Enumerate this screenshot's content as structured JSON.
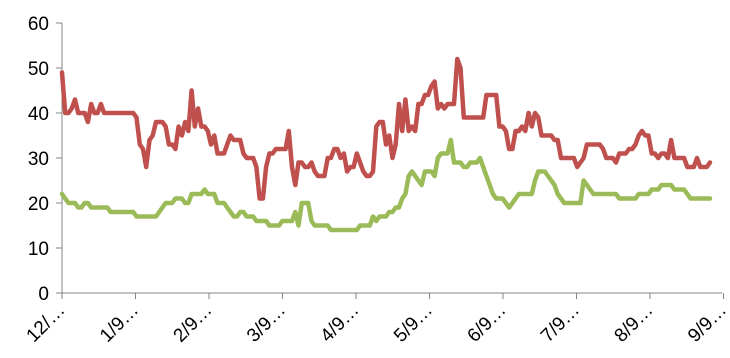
{
  "chart_data": {
    "type": "line",
    "title": "",
    "xlabel": "",
    "ylabel": "",
    "ylim": [
      0,
      60
    ],
    "yticks": [
      0,
      10,
      20,
      30,
      40,
      50,
      60
    ],
    "ytick_labels": [
      "0",
      "10",
      "20",
      "30",
      "40",
      "50",
      "60"
    ],
    "grid": false,
    "legend": "none",
    "xtick_labels": [
      "12/…",
      "1/9…",
      "2/9…",
      "3/9…",
      "4/9…",
      "5/9…",
      "6/9…",
      "7/9…",
      "8/9…",
      "9/9…"
    ],
    "x": [
      0,
      1,
      2,
      3,
      4,
      5,
      6,
      7,
      8,
      9,
      10,
      11,
      12,
      13,
      14,
      15,
      16,
      17,
      18,
      19,
      20,
      21,
      22,
      23,
      24,
      25,
      26,
      27,
      28,
      29,
      30,
      31,
      32,
      33,
      34,
      35,
      36,
      37,
      38,
      39,
      40,
      41,
      42,
      43,
      44,
      45,
      46,
      47,
      48,
      49,
      50,
      51,
      52,
      53,
      54,
      55,
      56,
      57,
      58,
      59,
      60,
      61,
      62,
      63,
      64,
      65,
      66,
      67,
      68,
      69,
      70,
      71,
      72,
      73,
      74,
      75,
      76,
      77,
      78,
      79,
      80,
      81,
      82,
      83,
      84,
      85,
      86,
      87,
      88,
      89,
      90,
      91,
      92,
      93,
      94,
      95,
      96,
      97,
      98,
      99,
      100,
      101,
      102,
      103,
      104,
      105,
      106,
      107,
      108,
      109,
      110,
      111,
      112,
      113,
      114,
      115,
      116,
      117,
      118,
      119,
      120,
      121,
      122,
      123,
      124,
      125,
      126,
      127,
      128,
      129,
      130,
      131,
      132,
      133,
      134,
      135,
      136,
      137,
      138,
      139,
      140,
      141,
      142,
      143,
      144,
      145,
      146,
      147,
      148,
      149,
      150,
      151,
      152,
      153,
      154,
      155,
      156,
      157,
      158,
      159,
      160,
      161,
      162,
      163,
      164,
      165,
      166,
      167,
      168,
      169,
      170,
      171,
      172,
      173,
      174,
      175,
      176,
      177,
      178,
      179,
      180,
      181,
      182,
      183,
      184,
      185,
      186,
      187,
      188,
      189,
      190,
      191,
      192,
      193,
      194,
      195,
      196,
      197,
      198,
      199,
      200
    ],
    "series": [
      {
        "color": "#c0504d",
        "values": [
          49,
          40,
          40,
          41,
          43,
          40,
          40,
          40,
          38,
          42,
          40,
          40,
          42,
          40,
          40,
          40,
          40,
          40,
          40,
          40,
          40,
          40,
          40,
          39,
          33,
          32,
          28,
          34,
          35,
          38,
          38,
          38,
          37,
          33,
          33,
          32,
          37,
          35,
          38,
          36,
          45,
          37,
          41,
          37,
          37,
          36,
          33,
          35,
          31,
          31,
          31,
          33,
          35,
          34,
          34,
          34,
          31,
          30,
          30,
          30,
          28,
          21,
          21,
          28,
          31,
          31,
          32,
          32,
          32,
          32,
          36,
          28,
          24,
          29,
          29,
          28,
          28,
          29,
          27,
          26,
          26,
          26,
          30,
          30,
          32,
          32,
          30,
          31,
          27,
          28,
          28,
          31,
          29,
          27,
          26,
          26,
          27,
          37,
          38,
          38,
          33,
          35,
          30,
          33,
          42,
          36,
          43,
          36,
          37,
          36,
          42,
          42,
          44,
          44,
          46,
          47,
          41,
          42,
          41,
          42,
          42,
          42,
          52,
          50,
          39,
          39,
          39,
          39,
          39,
          39,
          39,
          44,
          44,
          44,
          44,
          37,
          37,
          36,
          32,
          32,
          36,
          36,
          37,
          36,
          40,
          37,
          40,
          39,
          35,
          35,
          35,
          35,
          34,
          34,
          30,
          30,
          30,
          30,
          30,
          28,
          29,
          30,
          33,
          33,
          33,
          33,
          33,
          32,
          30,
          30,
          30,
          29,
          31,
          31,
          31,
          32,
          32,
          33,
          35,
          36,
          35,
          35,
          31,
          31,
          30,
          31,
          31,
          30,
          34,
          30,
          30,
          30,
          30,
          28,
          28,
          28,
          30,
          28,
          28,
          28,
          29
        ],
        "markers": false
      },
      {
        "color": "#9bbb59",
        "values": [
          22,
          21,
          20,
          20,
          20,
          19,
          19,
          20,
          20,
          19,
          19,
          19,
          19,
          19,
          19,
          18,
          18,
          18,
          18,
          18,
          18,
          18,
          18,
          17,
          17,
          17,
          17,
          17,
          17,
          17,
          18,
          19,
          20,
          20,
          20,
          21,
          21,
          21,
          20,
          20,
          22,
          22,
          22,
          22,
          23,
          22,
          22,
          22,
          20,
          20,
          20,
          19,
          18,
          17,
          17,
          18,
          18,
          17,
          17,
          17,
          16,
          16,
          16,
          16,
          15,
          15,
          15,
          15,
          16,
          16,
          16,
          16,
          18,
          15,
          20,
          20,
          20,
          16,
          15,
          15,
          15,
          15,
          15,
          14,
          14,
          14,
          14,
          14,
          14,
          14,
          14,
          14,
          15,
          15,
          15,
          15,
          17,
          16,
          17,
          17,
          17,
          18,
          18,
          19,
          19,
          21,
          22,
          26,
          27,
          26,
          25,
          24,
          27,
          27,
          27,
          26,
          30,
          31,
          31,
          31,
          34,
          29,
          29,
          29,
          28,
          28,
          29,
          29,
          29,
          30,
          28,
          26,
          24,
          22,
          21,
          21,
          21,
          20,
          19,
          20,
          21,
          22,
          22,
          22,
          22,
          22,
          25,
          27,
          27,
          27,
          26,
          25,
          24,
          22,
          21,
          20,
          20,
          20,
          20,
          20,
          20,
          25,
          24,
          23,
          22,
          22,
          22,
          22,
          22,
          22,
          22,
          22,
          21,
          21,
          21,
          21,
          21,
          21,
          22,
          22,
          22,
          22,
          23,
          23,
          23,
          24,
          24,
          24,
          24,
          23,
          23,
          23,
          23,
          22,
          21,
          21,
          21,
          21,
          21,
          21,
          21
        ],
        "markers": false
      }
    ]
  }
}
